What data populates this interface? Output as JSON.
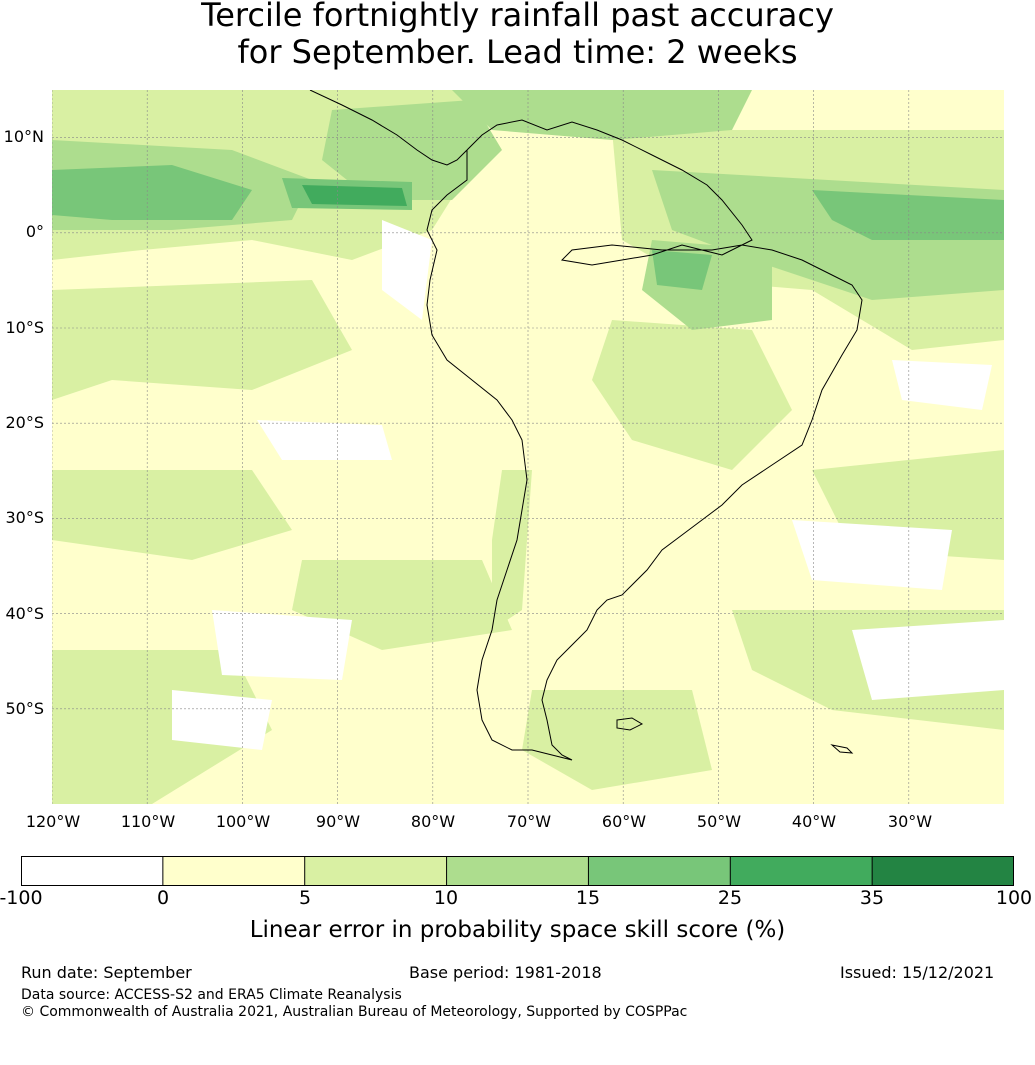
{
  "title": {
    "line1": "Tercile fortnightly rainfall past accuracy",
    "line2": "for September. Lead time: 2 weeks"
  },
  "map": {
    "lat_labels": [
      "10°N",
      "0°",
      "10°S",
      "20°S",
      "30°S",
      "40°S",
      "50°S"
    ],
    "lon_labels": [
      "120°W",
      "110°W",
      "100°W",
      "90°W",
      "80°W",
      "70°W",
      "60°W",
      "50°W",
      "40°W",
      "30°W"
    ],
    "extent": {
      "lon_min": -120,
      "lon_max": -20,
      "lat_min": -60,
      "lat_max": 15
    },
    "background_color": "#ffffcc",
    "coastline_color": "#000000",
    "gridline_color": "#888888"
  },
  "colorbar": {
    "ticks": [
      "-100",
      "0",
      "5",
      "10",
      "15",
      "25",
      "35",
      "100"
    ],
    "colors": [
      "#ffffff",
      "#ffffcc",
      "#d9f0a3",
      "#addd8e",
      "#78c679",
      "#41ab5d",
      "#238443"
    ],
    "label": "Linear error in probability space skill score (%)"
  },
  "footer": {
    "run_date": "Run date: September",
    "base_period": "Base period: 1981-2018",
    "issued": "Issued: 15/12/2021",
    "data_source": "Data source: ACCESS-S2 and ERA5 Climate Reanalysis",
    "copyright": "© Commonwealth of Australia 2021, Australian Bureau of Meteorology, Supported by COSPPac"
  }
}
